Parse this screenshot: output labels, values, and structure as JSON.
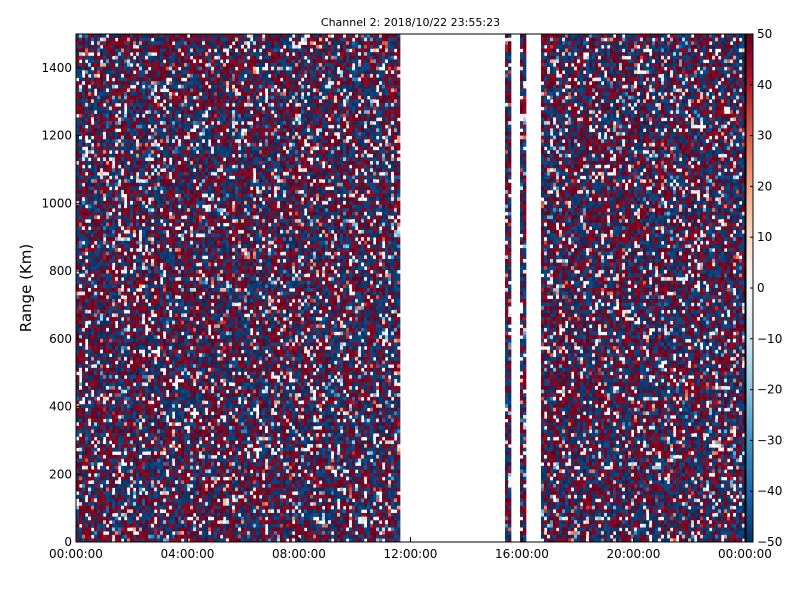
{
  "chart_data": {
    "type": "heatmap",
    "title": "Channel 2: 2018/10/22 23:55:23",
    "xlabel": "",
    "ylabel": "Range (Km)",
    "x_ticks": [
      "00:00:00",
      "04:00:00",
      "08:00:00",
      "12:00:00",
      "16:00:00",
      "20:00:00",
      "00:00:00"
    ],
    "x_range_hours": [
      0,
      24
    ],
    "y_ticks": [
      0,
      200,
      400,
      600,
      800,
      1000,
      1200,
      1400
    ],
    "ylim": [
      0,
      1500
    ],
    "colorbar": {
      "colormap": "RdBu_r",
      "range": [
        -50,
        50
      ],
      "ticks": [
        50,
        40,
        30,
        20,
        10,
        0,
        -10,
        -20,
        -30,
        -40,
        -50
      ],
      "colors": [
        "#053061",
        "#2166ac",
        "#4393c3",
        "#92c5de",
        "#d1e5f0",
        "#f7f7f7",
        "#fddbc7",
        "#f4a582",
        "#d6604d",
        "#b2182b",
        "#67001f"
      ]
    },
    "data_gaps_hours": [
      [
        11.65,
        11.92
      ],
      [
        12.0,
        15.35
      ],
      [
        15.65,
        15.9
      ],
      [
        16.1,
        16.65
      ]
    ],
    "value_pattern": "noise saturating near -50 and +50 across all range gates, with sparse intermediate values and blank cells"
  }
}
